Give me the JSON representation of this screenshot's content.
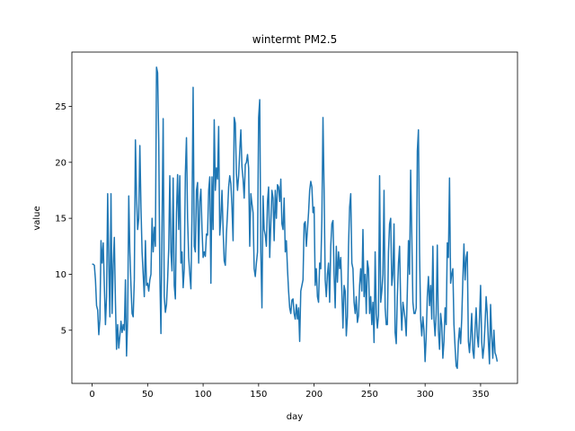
{
  "chart_data": {
    "type": "line",
    "title": "wintermt PM2.5",
    "xlabel": "day",
    "ylabel": "value",
    "color": "#1f77b4",
    "xlim": [
      -18.25,
      383.25
    ],
    "ylim": [
      0.25,
      29.85
    ],
    "xticks": [
      0,
      50,
      100,
      150,
      200,
      250,
      300,
      350
    ],
    "yticks": [
      5,
      10,
      15,
      20,
      25
    ],
    "x": [
      0,
      1,
      2,
      3,
      4,
      5,
      6,
      7,
      8,
      9,
      10,
      11,
      12,
      13,
      14,
      15,
      16,
      17,
      18,
      19,
      20,
      21,
      22,
      23,
      24,
      25,
      26,
      27,
      28,
      29,
      30,
      31,
      32,
      33,
      34,
      35,
      36,
      37,
      38,
      39,
      40,
      41,
      42,
      43,
      44,
      45,
      46,
      47,
      48,
      49,
      50,
      51,
      52,
      53,
      54,
      55,
      56,
      57,
      58,
      59,
      60,
      61,
      62,
      63,
      64,
      65,
      66,
      67,
      68,
      69,
      70,
      71,
      72,
      73,
      74,
      75,
      76,
      77,
      78,
      79,
      80,
      81,
      82,
      83,
      84,
      85,
      86,
      87,
      88,
      89,
      90,
      91,
      92,
      93,
      94,
      95,
      96,
      97,
      98,
      99,
      100,
      101,
      102,
      103,
      104,
      105,
      106,
      107,
      108,
      109,
      110,
      111,
      112,
      113,
      114,
      115,
      116,
      117,
      118,
      119,
      120,
      121,
      122,
      123,
      124,
      125,
      126,
      127,
      128,
      129,
      130,
      131,
      132,
      133,
      134,
      135,
      136,
      137,
      138,
      139,
      140,
      141,
      142,
      143,
      144,
      145,
      146,
      147,
      148,
      149,
      150,
      151,
      152,
      153,
      154,
      155,
      156,
      157,
      158,
      159,
      160,
      161,
      162,
      163,
      164,
      165,
      166,
      167,
      168,
      169,
      170,
      171,
      172,
      173,
      174,
      175,
      176,
      177,
      178,
      179,
      180,
      181,
      182,
      183,
      184,
      185,
      186,
      187,
      188,
      189,
      190,
      191,
      192,
      193,
      194,
      195,
      196,
      197,
      198,
      199,
      200,
      201,
      202,
      203,
      204,
      205,
      206,
      207,
      208,
      209,
      210,
      211,
      212,
      213,
      214,
      215,
      216,
      217,
      218,
      219,
      220,
      221,
      222,
      223,
      224,
      225,
      226,
      227,
      228,
      229,
      230,
      231,
      232,
      233,
      234,
      235,
      236,
      237,
      238,
      239,
      240,
      241,
      242,
      243,
      244,
      245,
      246,
      247,
      248,
      249,
      250,
      251,
      252,
      253,
      254,
      255,
      256,
      257,
      258,
      259,
      260,
      261,
      262,
      263,
      264,
      265,
      266,
      267,
      268,
      269,
      270,
      271,
      272,
      273,
      274,
      275,
      276,
      277,
      278,
      279,
      280,
      281,
      282,
      283,
      284,
      285,
      286,
      287,
      288,
      289,
      290,
      291,
      292,
      293,
      294,
      295,
      296,
      297,
      298,
      299,
      300,
      301,
      302,
      303,
      304,
      305,
      306,
      307,
      308,
      309,
      310,
      311,
      312,
      313,
      314,
      315,
      316,
      317,
      318,
      319,
      320,
      321,
      322,
      323,
      324,
      325,
      326,
      327,
      328,
      329,
      330,
      331,
      332,
      333,
      334,
      335,
      336,
      337,
      338,
      339,
      340,
      341,
      342,
      343,
      344,
      345,
      346,
      347,
      348,
      349,
      350,
      351,
      352,
      353,
      354,
      355,
      356,
      357,
      358,
      359,
      360,
      361,
      362,
      363,
      364,
      365
    ],
    "values": [
      10.9,
      10.9,
      10.8,
      9.5,
      7.2,
      6.8,
      4.6,
      6.0,
      13.0,
      11.0,
      12.8,
      9.0,
      5.5,
      8.0,
      17.2,
      11.0,
      6.2,
      17.2,
      6.5,
      10.8,
      13.3,
      7.5,
      3.3,
      5.5,
      3.4,
      4.5,
      5.8,
      4.8,
      5.5,
      5.0,
      9.5,
      2.7,
      6.0,
      17.0,
      12.0,
      9.0,
      6.5,
      6.2,
      9.5,
      22.0,
      17.0,
      14.0,
      15.0,
      21.5,
      16.0,
      12.0,
      10.0,
      8.0,
      13.0,
      9.0,
      9.2,
      8.5,
      9.5,
      10.0,
      15.0,
      12.0,
      14.2,
      12.5,
      28.5,
      28.0,
      22.0,
      10.0,
      4.7,
      14.5,
      23.9,
      8.0,
      6.6,
      7.3,
      9.5,
      12.3,
      18.8,
      12.0,
      10.3,
      18.6,
      9.0,
      7.8,
      15.5,
      18.9,
      14.0,
      18.8,
      11.0,
      12.0,
      8.8,
      10.5,
      19.0,
      22.2,
      15.0,
      11.5,
      10.0,
      8.7,
      15.5,
      26.7,
      12.5,
      12.0,
      17.5,
      18.2,
      11.0,
      16.5,
      17.6,
      14.0,
      11.5,
      12.0,
      11.6,
      13.6,
      13.5,
      17.5,
      18.7,
      9.2,
      18.7,
      14.0,
      23.8,
      17.5,
      19.5,
      18.5,
      23.2,
      13.5,
      15.0,
      17.5,
      14.0,
      11.2,
      10.8,
      13.6,
      15.5,
      17.8,
      18.8,
      18.1,
      16.0,
      13.0,
      24.0,
      23.5,
      19.0,
      17.5,
      18.8,
      21.0,
      22.9,
      19.6,
      18.5,
      16.8,
      19.8,
      20.0,
      20.7,
      19.5,
      12.5,
      17.2,
      16.3,
      15.5,
      10.5,
      9.8,
      11.0,
      12.0,
      24.0,
      25.6,
      12.0,
      7.0,
      17.0,
      14.0,
      13.5,
      12.5,
      16.5,
      17.8,
      11.5,
      14.5,
      17.5,
      16.8,
      13.0,
      17.5,
      15.0,
      18.0,
      17.8,
      16.5,
      18.5,
      14.5,
      14.0,
      16.8,
      12.0,
      13.0,
      10.5,
      8.5,
      7.0,
      6.5,
      7.7,
      7.8,
      6.5,
      6.0,
      7.3,
      6.0,
      7.0,
      4.0,
      8.5,
      9.0,
      9.5,
      14.5,
      14.7,
      12.5,
      14.0,
      15.5,
      17.5,
      18.3,
      17.8,
      15.5,
      16.0,
      9.0,
      10.5,
      8.0,
      7.5,
      11.0,
      10.5,
      15.0,
      24.0,
      17.5,
      9.5,
      8.0,
      10.0,
      11.0,
      7.5,
      12.5,
      14.5,
      14.8,
      10.0,
      7.0,
      12.5,
      9.3,
      12.0,
      10.5,
      11.5,
      8.5,
      5.2,
      9.0,
      8.5,
      4.5,
      6.2,
      12.5,
      16.0,
      17.2,
      11.0,
      10.5,
      7.5,
      6.5,
      8.0,
      5.7,
      6.3,
      9.0,
      10.5,
      8.5,
      14.0,
      8.0,
      10.0,
      6.5,
      11.2,
      10.5,
      6.5,
      8.0,
      5.5,
      7.5,
      3.9,
      12.0,
      6.5,
      5.2,
      6.3,
      18.8,
      7.5,
      8.5,
      10.0,
      17.5,
      7.0,
      5.5,
      5.5,
      12.0,
      14.5,
      15.0,
      9.0,
      10.0,
      14.5,
      4.8,
      3.8,
      8.0,
      11.0,
      12.5,
      7.5,
      5.0,
      7.5,
      6.8,
      6.0,
      4.5,
      8.5,
      13.0,
      10.0,
      19.3,
      13.5,
      7.5,
      6.5,
      6.5,
      7.0,
      21.0,
      22.9,
      12.0,
      6.0,
      4.5,
      6.2,
      5.0,
      2.2,
      4.5,
      8.0,
      9.8,
      7.2,
      9.0,
      6.0,
      12.5,
      6.0,
      4.5,
      6.5,
      12.6,
      5.0,
      3.3,
      6.5,
      5.5,
      2.5,
      4.0,
      7.0,
      5.5,
      12.8,
      11.5,
      18.6,
      9.2,
      10.0,
      10.5,
      5.5,
      3.5,
      1.8,
      1.6,
      4.0,
      5.2,
      3.8,
      6.0,
      9.5,
      12.7,
      9.5,
      11.5,
      12.0,
      4.0,
      3.0,
      4.5,
      6.5,
      3.2,
      2.5,
      5.0,
      7.0,
      4.5,
      3.5,
      6.0,
      9.0,
      4.0,
      2.5,
      3.5,
      5.5,
      8.0,
      6.5,
      4.0,
      2.0,
      7.3,
      4.5,
      2.5,
      5.0,
      3.0,
      2.7,
      2.2
    ]
  }
}
